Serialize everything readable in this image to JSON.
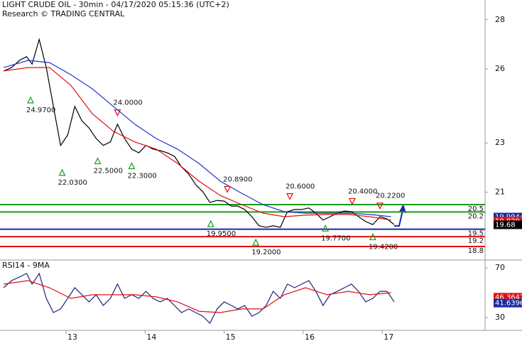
{
  "header": {
    "title": "LIGHT CRUDE OIL - 30min - 04/17/2020 05:15:36 (UTC+2)",
    "source": "Research © TRADING CENTRAL"
  },
  "chart_data": [
    {
      "type": "line",
      "xlim": [
        12.164,
        18.3
      ],
      "ylim": [
        18.28,
        28.8
      ],
      "yticks": [
        21,
        23,
        26,
        28
      ],
      "series": [
        {
          "color": "#000000",
          "x": [
            12.21,
            12.31,
            12.41,
            12.5,
            12.57,
            12.66,
            12.75,
            12.84,
            12.93,
            13.02,
            13.11,
            13.2,
            13.29,
            13.38,
            13.47,
            13.56,
            13.65,
            13.74,
            13.83,
            13.92,
            14.01,
            14.1,
            14.19,
            14.28,
            14.37,
            14.46,
            14.55,
            14.64,
            14.73,
            14.82,
            14.91,
            15.0,
            15.09,
            15.17,
            15.26,
            15.35,
            15.44,
            15.53,
            15.62,
            15.71,
            15.8,
            15.89,
            15.98,
            16.07,
            16.16,
            16.25,
            16.34,
            16.43,
            16.52,
            16.61,
            16.7,
            16.79,
            16.88,
            16.97,
            17.06,
            17.15
          ],
          "values": [
            25.92,
            26.06,
            26.35,
            26.5,
            26.2,
            27.2,
            26.06,
            24.48,
            22.9,
            23.32,
            24.48,
            23.9,
            23.61,
            23.18,
            22.9,
            23.04,
            23.76,
            23.18,
            22.75,
            22.6,
            22.9,
            22.75,
            22.69,
            22.6,
            22.46,
            22.03,
            21.74,
            21.31,
            21.02,
            20.59,
            20.67,
            20.64,
            20.44,
            20.44,
            20.3,
            20.01,
            19.64,
            19.58,
            19.64,
            19.58,
            20.21,
            20.3,
            20.3,
            20.36,
            20.15,
            19.87,
            20.01,
            20.15,
            20.24,
            20.21,
            20.01,
            19.81,
            19.69,
            20.01,
            19.92,
            19.69
          ]
        },
        {
          "color": "#e01010",
          "x": [
            12.21,
            12.52,
            12.79,
            13.06,
            13.33,
            13.6,
            13.87,
            14.14,
            14.41,
            14.68,
            14.95,
            15.22,
            15.49,
            15.76,
            16.03,
            16.3,
            16.57,
            16.84,
            17.11
          ],
          "values": [
            25.92,
            26.06,
            26.06,
            25.34,
            24.19,
            23.47,
            23.04,
            22.75,
            22.17,
            21.45,
            20.87,
            20.5,
            20.15,
            20.01,
            20.07,
            20.1,
            20.1,
            20.01,
            19.87
          ]
        },
        {
          "color": "#2233cc",
          "x": [
            12.21,
            12.52,
            12.79,
            13.06,
            13.33,
            13.6,
            13.87,
            14.14,
            14.41,
            14.68,
            14.95,
            15.22,
            15.49,
            15.76,
            16.03,
            16.3,
            16.57,
            16.84,
            17.11
          ],
          "values": [
            26.06,
            26.35,
            26.26,
            25.77,
            25.2,
            24.48,
            23.76,
            23.18,
            22.75,
            22.17,
            21.45,
            20.96,
            20.5,
            20.21,
            20.15,
            20.15,
            20.15,
            20.1,
            20.01
          ]
        }
      ],
      "levels": [
        {
          "value": 20.5,
          "color": "#1a9c1a"
        },
        {
          "value": 20.2,
          "color": "#1a9c1a"
        },
        {
          "value": 19.5,
          "color": "#1a2aa0"
        },
        {
          "value": 19.2,
          "color": "#e01010"
        },
        {
          "value": 18.8,
          "color": "#e01010"
        }
      ],
      "tags": [
        {
          "value": 19.9944,
          "color": "#1a2aa0"
        },
        {
          "value": 19.829,
          "color": "#e01010"
        },
        {
          "value": 19.68,
          "color": "#000000"
        }
      ],
      "annotations": [
        {
          "x": 12.55,
          "value": 24.97,
          "label": "24.9700",
          "dir": "up"
        },
        {
          "x": 12.95,
          "value": 22.03,
          "label": "22.0300",
          "dir": "up"
        },
        {
          "x": 13.4,
          "value": 22.5,
          "label": "22.5000",
          "dir": "up"
        },
        {
          "x": 13.65,
          "value": 24.0,
          "label": "24.0000",
          "dir": "down"
        },
        {
          "x": 13.83,
          "value": 22.3,
          "label": "22.3000",
          "dir": "up"
        },
        {
          "x": 15.04,
          "value": 20.89,
          "label": "20.8900",
          "dir": "down"
        },
        {
          "x": 14.83,
          "value": 19.95,
          "label": "19.9500",
          "dir": "up"
        },
        {
          "x": 15.4,
          "value": 19.2,
          "label": "19.2000",
          "dir": "up"
        },
        {
          "x": 15.83,
          "value": 20.6,
          "label": "20.6000",
          "dir": "down"
        },
        {
          "x": 16.28,
          "value": 19.77,
          "label": "19.7700",
          "dir": "up"
        },
        {
          "x": 16.62,
          "value": 20.4,
          "label": "20.4000",
          "dir": "down"
        },
        {
          "x": 16.88,
          "value": 19.42,
          "label": "19.4200",
          "dir": "up"
        },
        {
          "x": 16.97,
          "value": 20.22,
          "label": "20.2200",
          "dir": "down"
        }
      ]
    },
    {
      "type": "line",
      "title": "RSI14 - 9MA",
      "xlim": [
        12.164,
        18.3
      ],
      "xticks": [
        13,
        14,
        15,
        16,
        17
      ],
      "ylim": [
        19.7,
        75.7
      ],
      "yticks": [
        30,
        70
      ],
      "series": [
        {
          "color": "#1a237e",
          "x": [
            12.21,
            12.31,
            12.41,
            12.5,
            12.57,
            12.66,
            12.75,
            12.84,
            12.93,
            13.02,
            13.11,
            13.2,
            13.29,
            13.38,
            13.47,
            13.56,
            13.65,
            13.74,
            13.83,
            13.92,
            14.01,
            14.1,
            14.19,
            14.28,
            14.37,
            14.46,
            14.55,
            14.64,
            14.73,
            14.82,
            14.91,
            15.0,
            15.09,
            15.17,
            15.26,
            15.35,
            15.44,
            15.53,
            15.62,
            15.71,
            15.8,
            15.89,
            15.98,
            16.07,
            16.16,
            16.25,
            16.34,
            16.43,
            16.52,
            16.61,
            16.7,
            16.79,
            16.88,
            16.97,
            17.06,
            17.15
          ],
          "values": [
            54,
            59.7,
            62.6,
            65.4,
            56.9,
            65.4,
            45.4,
            34,
            36.9,
            45.4,
            54,
            48.3,
            42.6,
            48.3,
            39.7,
            45.4,
            56.9,
            45.4,
            48.3,
            45.4,
            51.1,
            45.4,
            42.6,
            45.4,
            39.7,
            34,
            36.9,
            34,
            31.1,
            25.4,
            36.9,
            42.6,
            39.7,
            36.9,
            39.7,
            31.1,
            34,
            39.7,
            51.1,
            45.4,
            56.9,
            54,
            56.9,
            59.7,
            51.1,
            39.7,
            48.3,
            51.1,
            54,
            56.9,
            51.1,
            42.6,
            45.4,
            51.1,
            51.1,
            42.6
          ]
        },
        {
          "color": "#e01010",
          "x": [
            12.21,
            12.52,
            12.79,
            13.06,
            13.33,
            13.6,
            13.87,
            14.14,
            14.41,
            14.68,
            14.95,
            15.22,
            15.49,
            15.76,
            16.03,
            16.3,
            16.57,
            16.84,
            17.11
          ],
          "values": [
            56.9,
            59.7,
            54,
            45.4,
            48.3,
            48.3,
            48.3,
            46.6,
            42.6,
            35.1,
            34,
            36.9,
            36.9,
            48.3,
            54,
            48.3,
            51.1,
            48.3,
            50
          ]
        }
      ],
      "tags": [
        {
          "value": 46.3647,
          "color": "#e01010"
        },
        {
          "value": 41.6396,
          "color": "#1a2aa0"
        }
      ]
    }
  ]
}
